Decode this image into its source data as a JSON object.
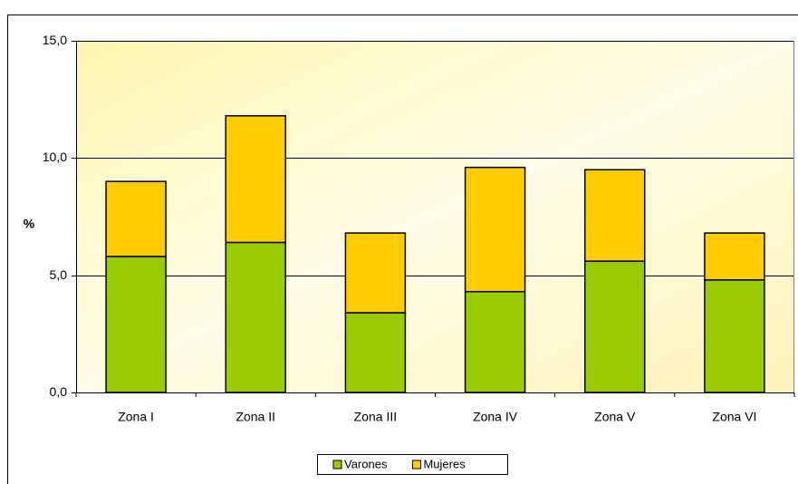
{
  "chart_data": {
    "type": "stacked-bar",
    "y_label": "%",
    "categories": [
      "Zona I",
      "Zona II",
      "Zona III",
      "Zona IV",
      "Zona V",
      "Zona VI"
    ],
    "series": [
      {
        "name": "Varones",
        "color": "#99cc00",
        "values": [
          5.8,
          6.4,
          3.4,
          4.3,
          5.6,
          4.8
        ]
      },
      {
        "name": "Mujeres",
        "color": "#ffcc00",
        "values": [
          3.2,
          5.4,
          3.4,
          5.3,
          3.9,
          2.0
        ]
      }
    ],
    "ylim": [
      0,
      15
    ],
    "yticks": [
      {
        "value": 0,
        "label": "0,0"
      },
      {
        "value": 5,
        "label": "5,0"
      },
      {
        "value": 10,
        "label": "10,0"
      },
      {
        "value": 15,
        "label": "15,0"
      }
    ],
    "grid": true,
    "legend": "bottom"
  }
}
